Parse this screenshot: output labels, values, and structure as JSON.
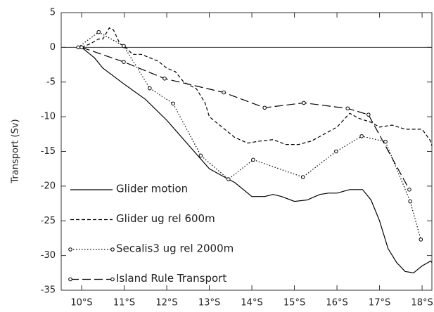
{
  "chart_data": {
    "type": "line",
    "y_label": "Transport (Sv)",
    "xlim": [
      9.52,
      18.23
    ],
    "ylim": [
      -35,
      5
    ],
    "xticks": [
      {
        "value": 10,
        "label": "10°S"
      },
      {
        "value": 11,
        "label": "11°S"
      },
      {
        "value": 12,
        "label": "12°S"
      },
      {
        "value": 13,
        "label": "13°S"
      },
      {
        "value": 14,
        "label": "14°S"
      },
      {
        "value": 15,
        "label": "15°S"
      },
      {
        "value": 16,
        "label": "16°S"
      },
      {
        "value": 17,
        "label": "17°S"
      },
      {
        "value": 18,
        "label": "18°S"
      }
    ],
    "yticks": [
      -35,
      -30,
      -25,
      -20,
      -15,
      -10,
      -5,
      0,
      5
    ],
    "zero_line": 0,
    "series": [
      {
        "name": "Glider motion",
        "color": "#000000",
        "dash": "solid",
        "marker": "none",
        "x": [
          10,
          10.3,
          10.5,
          11,
          11.5,
          12,
          12.5,
          13,
          13.3,
          13.6,
          14,
          14.3,
          14.5,
          14.7,
          15,
          15.3,
          15.6,
          15.8,
          16,
          16.3,
          16.6,
          16.8,
          17,
          17.2,
          17.4,
          17.6,
          17.8,
          18,
          18.2,
          18.23
        ],
        "y": [
          0,
          -1.5,
          -3,
          -5.3,
          -7.5,
          -10.5,
          -14,
          -17.5,
          -18.5,
          -19.5,
          -21.5,
          -21.5,
          -21.2,
          -21.5,
          -22.2,
          -22,
          -21.2,
          -21,
          -21,
          -20.5,
          -20.5,
          -22,
          -25,
          -29,
          -31,
          -32.3,
          -32.5,
          -31.5,
          -30.8,
          -31
        ]
      },
      {
        "name": "Glider ug rel 600m",
        "color": "#000000",
        "dash": "dash",
        "marker": "none",
        "x": [
          10,
          10.2,
          10.4,
          10.5,
          10.65,
          10.75,
          10.9,
          11,
          11.2,
          11.4,
          11.6,
          11.8,
          12,
          12.2,
          12.4,
          12.7,
          12.9,
          13,
          13.3,
          13.6,
          13.9,
          14.2,
          14.5,
          14.8,
          15.1,
          15.4,
          15.7,
          16,
          16.3,
          16.5,
          16.8,
          17,
          17.3,
          17.6,
          18,
          18.2,
          18.23
        ],
        "y": [
          0,
          0.5,
          1.2,
          1.2,
          2.8,
          2.5,
          0.5,
          0.2,
          -1,
          -1,
          -1.5,
          -2,
          -3,
          -3.5,
          -5,
          -6,
          -8,
          -10,
          -11.5,
          -13,
          -13.8,
          -13.5,
          -13.3,
          -14,
          -14,
          -13.5,
          -12.5,
          -11.5,
          -9.5,
          -10.2,
          -10.8,
          -11.5,
          -11.2,
          -11.8,
          -11.8,
          -13.5,
          -14.2
        ]
      },
      {
        "name": "Secalis3 ug rel 2000m",
        "color": "#000000",
        "dash": "dot",
        "marker": "circle",
        "x": [
          9.92,
          10.4,
          10.99,
          11.6,
          12.15,
          12.8,
          13.45,
          14.03,
          15.2,
          15.98,
          16.58,
          17.14,
          17.72,
          17.97
        ],
        "y": [
          0,
          2.2,
          0.2,
          -5.9,
          -8.1,
          -15.6,
          -19,
          -16.2,
          -18.7,
          -15,
          -12.8,
          -13.6,
          -22.2,
          -27.7
        ]
      },
      {
        "name": "Island Rule Transport",
        "color": "#000000",
        "dash": "longdash",
        "marker": "circle",
        "x": [
          10,
          10.99,
          11.95,
          13.34,
          14.3,
          15.22,
          16.25,
          16.74,
          17.7
        ],
        "y": [
          0,
          -2.1,
          -4.5,
          -6.5,
          -8.7,
          -8,
          -8.8,
          -9.7,
          -20.5
        ]
      }
    ]
  }
}
